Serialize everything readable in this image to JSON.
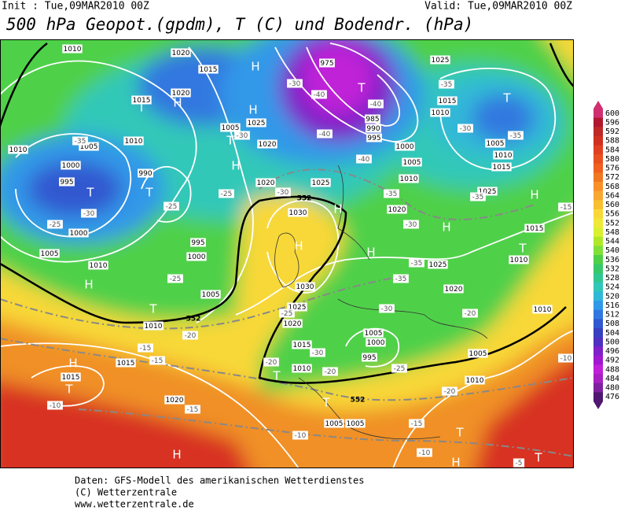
{
  "header": {
    "init": "Init : Tue,09MAR2010 00Z",
    "valid": "Valid: Tue,09MAR2010 00Z",
    "title": "500 hPa Geopot.(gpdm), T (C) und Bodendr. (hPa)"
  },
  "map": {
    "pressure_labels": [
      "1010",
      "1020",
      "1015",
      "1015",
      "1020",
      "1010",
      "1005",
      "1010",
      "1000",
      "995",
      "990",
      "1000",
      "1005",
      "1010",
      "995",
      "1000",
      "1005",
      "1010",
      "1015",
      "1015",
      "1020",
      "1005",
      "1025",
      "1020",
      "1020",
      "1025",
      "1030",
      "1030",
      "1025",
      "1020",
      "1015",
      "1010",
      "1005",
      "1005",
      "975",
      "985",
      "990",
      "995",
      "1000",
      "1005",
      "1010",
      "1020",
      "1025",
      "1015",
      "1010",
      "1005",
      "1010",
      "1015",
      "1025",
      "1015",
      "1010",
      "1010",
      "1025",
      "1020",
      "1005",
      "1000",
      "995",
      "1005",
      "1010"
    ],
    "temperature_labels": [
      "-35",
      "-30",
      "-25",
      "-25",
      "-25",
      "-25",
      "-30",
      "-30",
      "-40",
      "-40",
      "-40",
      "-40",
      "-35",
      "-30",
      "-35",
      "-35",
      "-30",
      "-35",
      "-35",
      "-35",
      "-30",
      "-25",
      "-30",
      "-20",
      "-20",
      "-25",
      "-20",
      "-20",
      "-15",
      "-15",
      "-15",
      "-10",
      "-15",
      "-10",
      "-15",
      "-10",
      "-5",
      "-10",
      "-20",
      "-30"
    ],
    "height_labels": [
      "552",
      "552",
      "552"
    ],
    "highs_lows": [
      "H",
      "H",
      "T",
      "T",
      "H",
      "T",
      "T",
      "H",
      "T",
      "T",
      "H",
      "H",
      "H",
      "H",
      "T",
      "H",
      "T",
      "H",
      "T",
      "H",
      "T",
      "T",
      "T",
      "T",
      "H",
      "H"
    ]
  },
  "colorbar": {
    "ticks": [
      600,
      596,
      592,
      588,
      584,
      580,
      576,
      572,
      568,
      564,
      560,
      556,
      552,
      548,
      544,
      540,
      536,
      532,
      528,
      524,
      520,
      516,
      512,
      508,
      504,
      500,
      496,
      492,
      488,
      484,
      480,
      476
    ],
    "colors": [
      "#d03070",
      "#b01830",
      "#c02828",
      "#d03020",
      "#e04020",
      "#e85020",
      "#f06020",
      "#f07820",
      "#f89028",
      "#f8a830",
      "#f8c030",
      "#f8d838",
      "#f0e838",
      "#d8f030",
      "#b0e828",
      "#80e038",
      "#50d048",
      "#38c868",
      "#30c890",
      "#30c8b8",
      "#30b8d8",
      "#3098e8",
      "#3078e0",
      "#3058d0",
      "#3840c0",
      "#5030c0",
      "#8020c8",
      "#a018d0",
      "#c020d8",
      "#a820c0",
      "#8020a0",
      "#501870"
    ]
  },
  "footer": {
    "lines": [
      "Daten: GFS-Modell des amerikanischen Wetterdienstes",
      "(C) Wetterzentrale",
      "www.wetterzentrale.de"
    ]
  }
}
